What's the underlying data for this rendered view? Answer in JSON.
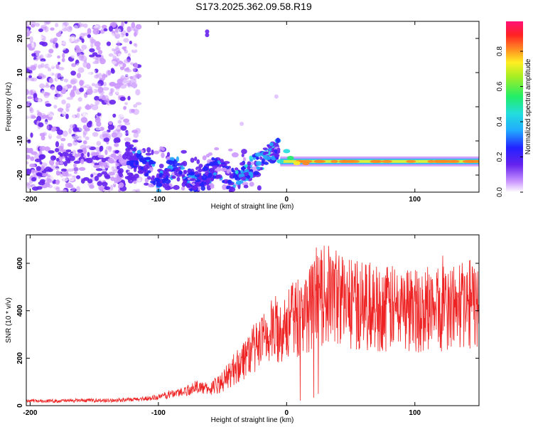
{
  "title": "S173.2025.362.09.58.R19",
  "colors": {
    "snr_line": "#ee2222",
    "strong": "#e8202a",
    "mid_green": "#33ee55",
    "mid_cyan": "#22cccc",
    "low_purple": "#6622ee",
    "faint_purple": "#cc99ff"
  },
  "chart_data": [
    {
      "type": "heatmap",
      "xlabel": "Height of straight line (km)",
      "ylabel": "Frequency (Hz)",
      "xlim": [
        -203,
        150
      ],
      "ylim": [
        -25,
        25
      ],
      "xticks": [
        -200,
        -100,
        0,
        100
      ],
      "yticks": [
        -20,
        -10,
        0,
        10,
        20
      ],
      "grid": false,
      "colorbar": {
        "label": "Normalized spectral amplitude",
        "range": [
          0.0,
          0.97
        ],
        "ticks": [
          "0.0",
          "0.2",
          "0.4",
          "0.6",
          "0.8"
        ],
        "colormap": "rainbow (white/purple → blue → cyan → green → yellow → red → magenta)"
      },
      "features": [
        {
          "description": "diffuse noise",
          "x_range": [
            -203,
            -115
          ],
          "y_range": [
            -25,
            25
          ],
          "amplitude": 0.1
        },
        {
          "description": "tone branch",
          "x_range": [
            -125,
            -15
          ],
          "y_range": [
            -23,
            -12
          ],
          "amplitude": 0.3
        },
        {
          "description": "steady tone",
          "x_range": [
            0,
            150
          ],
          "y_center": -16,
          "amplitude": 0.85
        }
      ]
    },
    {
      "type": "line",
      "xlabel": "Height of straight line (km)",
      "ylabel": "SNR (10 * v/v)",
      "xlim": [
        -203,
        150
      ],
      "ylim": [
        0,
        720
      ],
      "xticks": [
        -200,
        -100,
        0,
        100
      ],
      "yticks": [
        0,
        200,
        400,
        600
      ],
      "grid": false,
      "series": [
        {
          "x": [
            -203,
            -180,
            -160,
            -140,
            -120,
            -100,
            -90,
            -80,
            -70,
            -60,
            -50,
            -40,
            -30,
            -20,
            -10,
            0,
            10,
            20,
            30,
            40,
            50,
            60,
            80,
            100,
            120,
            140,
            150
          ],
          "y": [
            20,
            20,
            22,
            22,
            25,
            35,
            50,
            60,
            80,
            70,
            100,
            160,
            220,
            260,
            320,
            340,
            380,
            420,
            470,
            460,
            430,
            420,
            410,
            400,
            410,
            430,
            420
          ]
        }
      ]
    }
  ]
}
